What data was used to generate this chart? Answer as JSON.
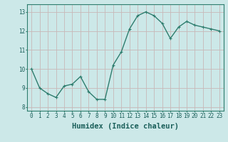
{
  "x": [
    0,
    1,
    2,
    3,
    4,
    5,
    6,
    7,
    8,
    9,
    10,
    11,
    12,
    13,
    14,
    15,
    16,
    17,
    18,
    19,
    20,
    21,
    22,
    23
  ],
  "y": [
    10.0,
    9.0,
    8.7,
    8.5,
    9.1,
    9.2,
    9.6,
    8.8,
    8.4,
    8.4,
    10.2,
    10.9,
    12.1,
    12.8,
    13.0,
    12.8,
    12.4,
    11.6,
    12.2,
    12.5,
    12.3,
    12.2,
    12.1,
    12.0
  ],
  "line_color": "#2e7d6e",
  "marker": "+",
  "marker_size": 3.5,
  "bg_color": "#cce8e8",
  "grid_color": "#c8b8b8",
  "xlabel": "Humidex (Indice chaleur)",
  "xlim": [
    -0.5,
    23.5
  ],
  "ylim": [
    7.8,
    13.4
  ],
  "yticks": [
    8,
    9,
    10,
    11,
    12,
    13
  ],
  "xticks": [
    0,
    1,
    2,
    3,
    4,
    5,
    6,
    7,
    8,
    9,
    10,
    11,
    12,
    13,
    14,
    15,
    16,
    17,
    18,
    19,
    20,
    21,
    22,
    23
  ],
  "tick_fontsize": 5.5,
  "xlabel_fontsize": 7.5,
  "line_width": 1.0,
  "spine_color": "#2e7d6e",
  "text_color": "#1a5f5a"
}
